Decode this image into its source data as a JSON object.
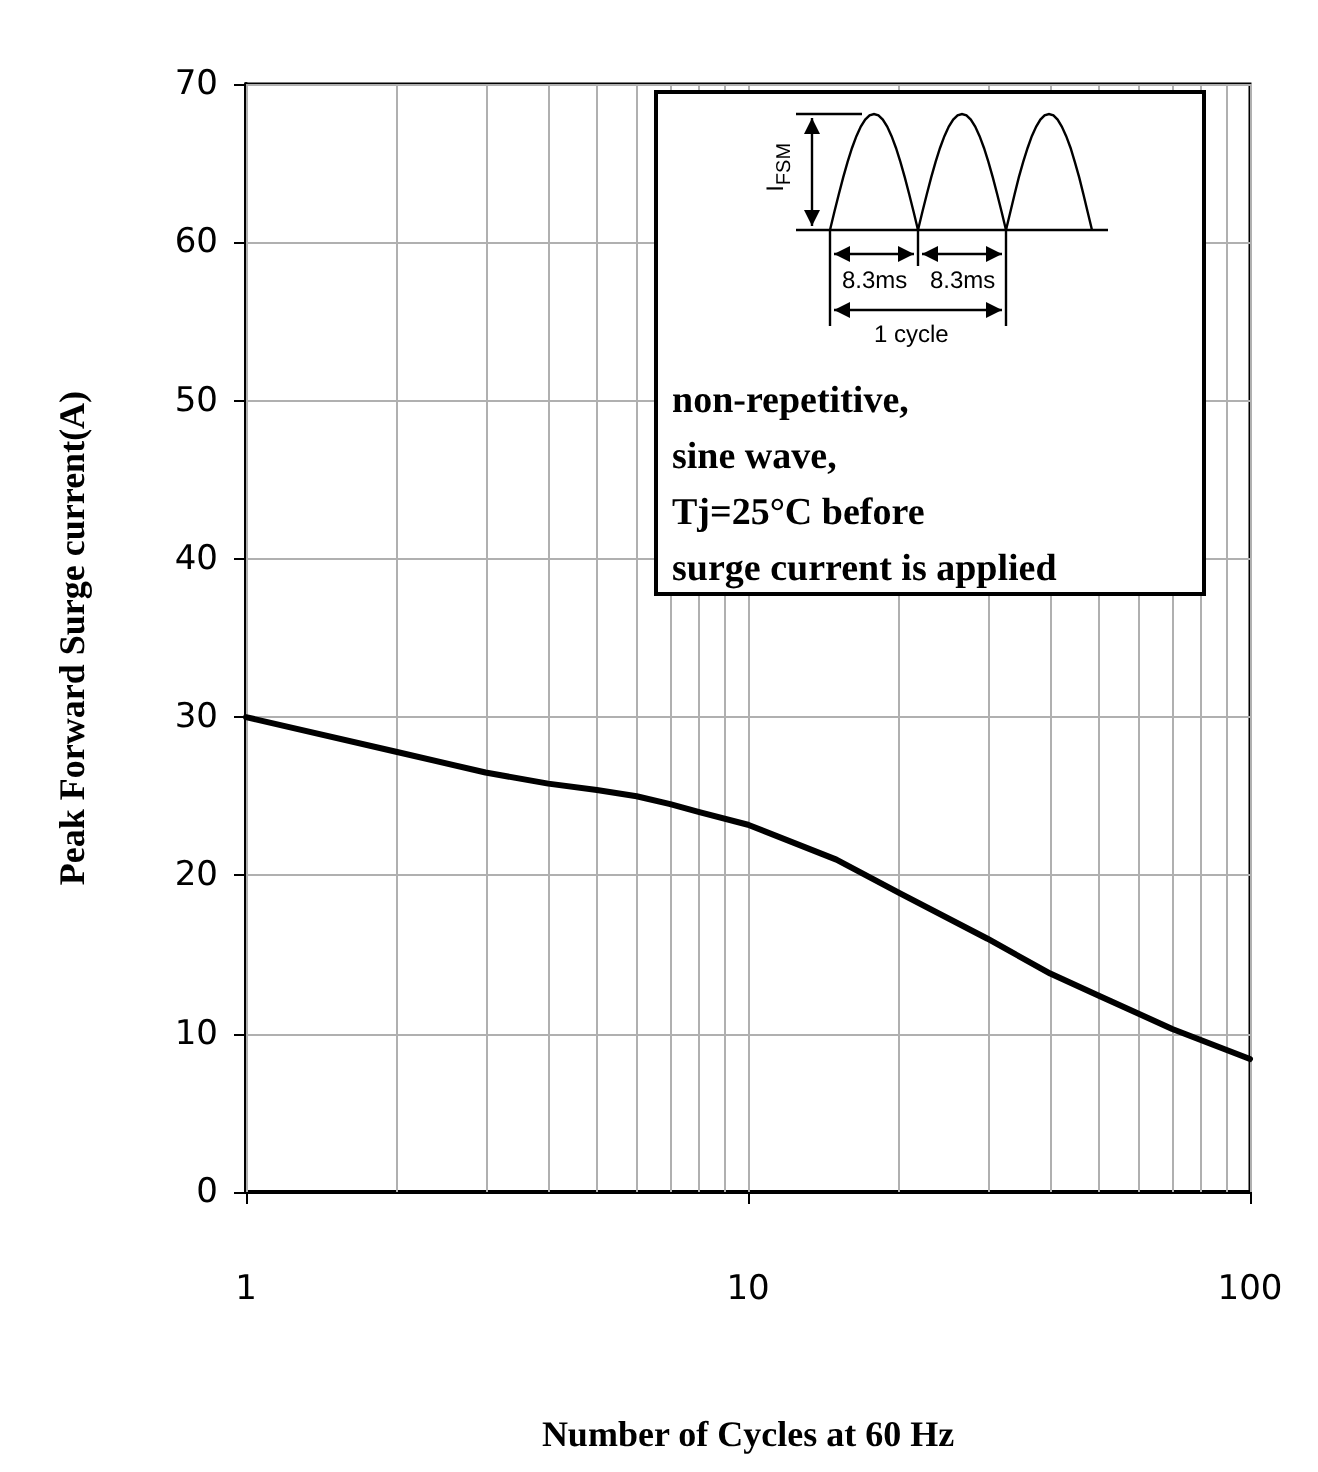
{
  "chart_data": {
    "type": "line",
    "xlabel": "Number of Cycles at 60 Hz",
    "ylabel": "Peak Forward Surge current(A)",
    "log": "x",
    "grid": true,
    "marker": "none",
    "line_style": "solid",
    "xlim": [
      1,
      100
    ],
    "xticks": [
      1,
      {
        "value": 2,
        "label": null
      },
      {
        "value": 3,
        "label": null
      },
      {
        "value": 4,
        "label": null
      },
      {
        "value": 5,
        "label": null
      },
      {
        "value": 6,
        "label": null
      },
      {
        "value": 7,
        "label": null
      },
      {
        "value": 8,
        "label": null
      },
      {
        "value": 9,
        "label": null
      },
      10,
      {
        "value": 20,
        "label": null
      },
      {
        "value": 30,
        "label": null
      },
      {
        "value": 40,
        "label": null
      },
      {
        "value": 50,
        "label": null
      },
      {
        "value": 60,
        "label": null
      },
      {
        "value": 70,
        "label": null
      },
      {
        "value": 80,
        "label": null
      },
      {
        "value": 90,
        "label": null
      },
      100
    ],
    "ylim": [
      0,
      70
    ],
    "yticks": [
      0,
      10,
      20,
      30,
      40,
      50,
      60,
      70
    ],
    "series": [
      {
        "color": "#000000",
        "x": [
          1,
          2,
          3,
          4,
          5,
          6,
          7,
          8,
          10,
          15,
          20,
          30,
          40,
          50,
          70,
          100
        ],
        "values": [
          30,
          27.8,
          26.5,
          25.8,
          25.4,
          25,
          24.5,
          24,
          23.2,
          21,
          18.9,
          16,
          13.8,
          12.4,
          10.3,
          8.4
        ]
      }
    ],
    "annotations": [
      "I$_{FSM}$",
      "8.3ms",
      "8.3ms",
      "1 cycle",
      "non-repetitive,\nsine wave,\nTj=25°C before\nsurge current is applied"
    ]
  }
}
